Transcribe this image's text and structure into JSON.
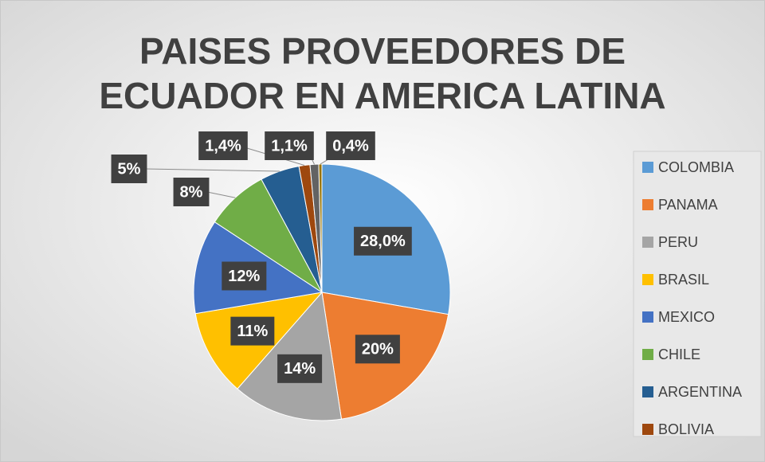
{
  "chart_data": {
    "type": "pie",
    "title": "PAISES PROVEEDORES DE ECUADOR EN AMERICA LATINA",
    "categories": [
      "COLOMBIA",
      "PANAMA",
      "PERU",
      "BRASIL",
      "MEXICO",
      "CHILE",
      "ARGENTINA",
      "BOLIVIA",
      null,
      null
    ],
    "values": [
      28.0,
      20,
      14,
      11,
      12,
      8,
      5,
      1.4,
      1.1,
      0.4
    ],
    "value_labels": [
      "28,0%",
      "20%",
      "14%",
      "11%",
      "12%",
      "8%",
      "5%",
      "1,4%",
      "1,1%",
      "0,4%"
    ],
    "colors": [
      "#5b9bd5",
      "#ed7d31",
      "#a5a5a5",
      "#ffc000",
      "#4472c4",
      "#70ad47",
      "#255e91",
      "#9e480e",
      "#636363",
      "#997300"
    ],
    "legend": "right"
  }
}
